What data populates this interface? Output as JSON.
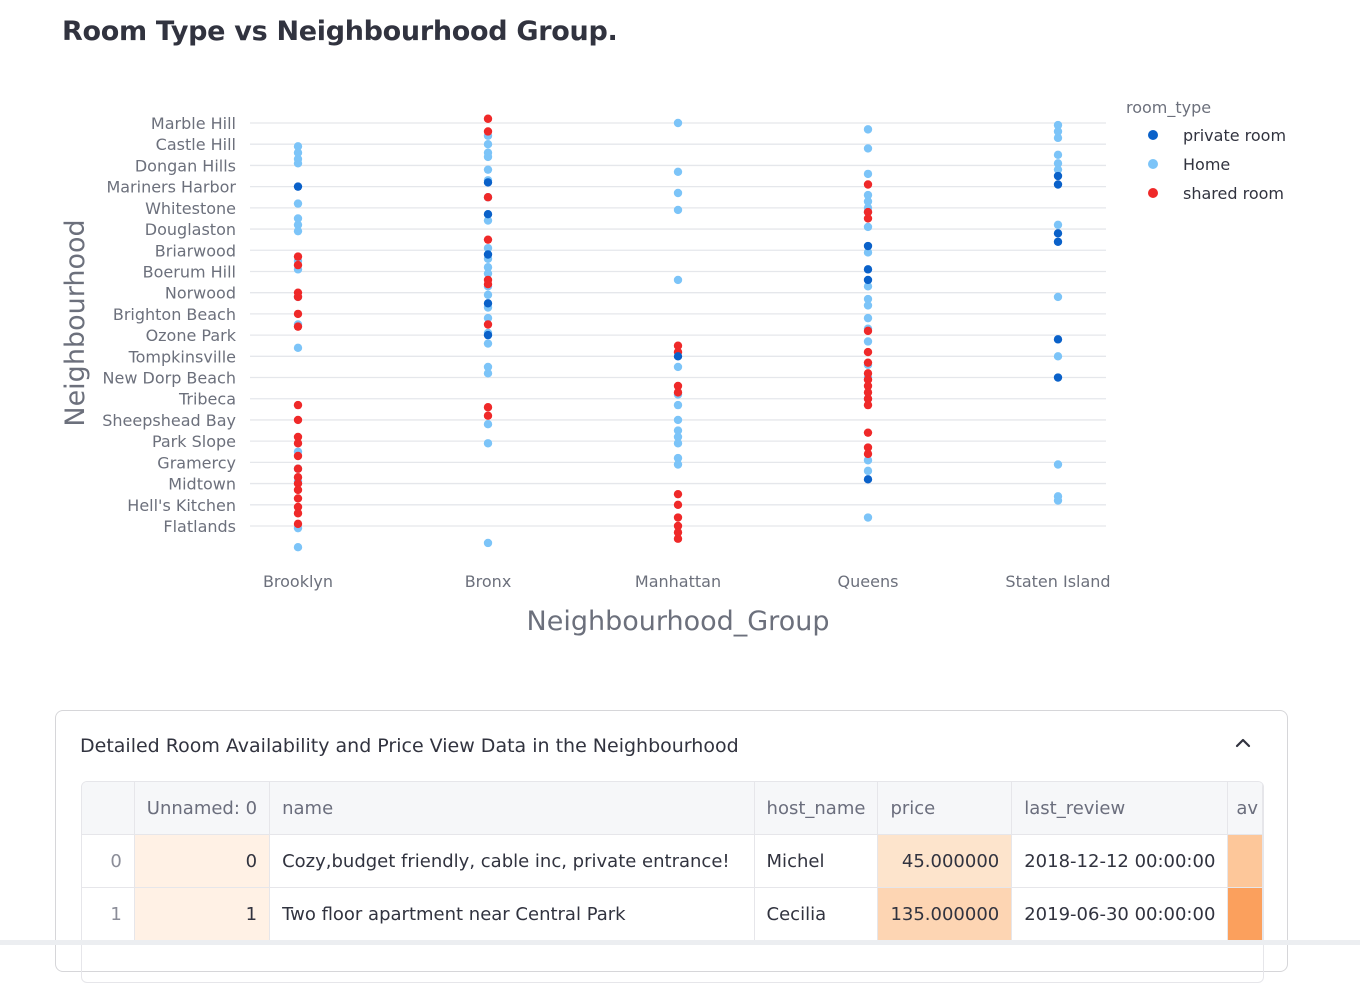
{
  "page": {
    "title": "Room Type vs Neighbourhood Group."
  },
  "chart_data": {
    "type": "scatter",
    "xlabel": "Neighbourhood_Group",
    "ylabel": "Neighbourhood",
    "categories_x": [
      "Brooklyn",
      "Bronx",
      "Manhattan",
      "Queens",
      "Staten Island"
    ],
    "y_tick_labels": [
      "Marble Hill",
      "Castle Hill",
      "Dongan Hills",
      "Mariners Harbor",
      "Whitestone",
      "Douglaston",
      "Briarwood",
      "Boerum Hill",
      "Norwood",
      "Brighton Beach",
      "Ozone Park",
      "Tompkinsville",
      "New Dorp Beach",
      "Tribeca",
      "Sheepshead Bay",
      "Park Slope",
      "Gramercy",
      "Midtown",
      "Hell's Kitchen",
      "Flatlands"
    ],
    "legend": {
      "title": "room_type",
      "position": "top-right"
    },
    "grid": true,
    "series": [
      {
        "name": "private room",
        "color": "#0a61c9",
        "points": [
          [
            "Brooklyn",
            3.0
          ],
          [
            "Bronx",
            2.8
          ],
          [
            "Bronx",
            4.3
          ],
          [
            "Bronx",
            6.2
          ],
          [
            "Bronx",
            8.5
          ],
          [
            "Bronx",
            10.0
          ],
          [
            "Manhattan",
            11.0
          ],
          [
            "Queens",
            5.8
          ],
          [
            "Queens",
            6.9
          ],
          [
            "Queens",
            7.4
          ],
          [
            "Queens",
            16.8
          ],
          [
            "Staten Island",
            2.5
          ],
          [
            "Staten Island",
            2.9
          ],
          [
            "Staten Island",
            5.2
          ],
          [
            "Staten Island",
            5.6
          ],
          [
            "Staten Island",
            10.2
          ],
          [
            "Staten Island",
            12.0
          ]
        ]
      },
      {
        "name": "Home",
        "color": "#7cc4f8",
        "points": [
          [
            "Brooklyn",
            1.1
          ],
          [
            "Brooklyn",
            1.4
          ],
          [
            "Brooklyn",
            1.7
          ],
          [
            "Brooklyn",
            1.9
          ],
          [
            "Brooklyn",
            3.8
          ],
          [
            "Brooklyn",
            4.5
          ],
          [
            "Brooklyn",
            4.8
          ],
          [
            "Brooklyn",
            5.1
          ],
          [
            "Brooklyn",
            6.5
          ],
          [
            "Brooklyn",
            6.9
          ],
          [
            "Brooklyn",
            8.2
          ],
          [
            "Brooklyn",
            9.5
          ],
          [
            "Brooklyn",
            10.6
          ],
          [
            "Brooklyn",
            15.5
          ],
          [
            "Brooklyn",
            16.3
          ],
          [
            "Brooklyn",
            16.9
          ],
          [
            "Brooklyn",
            19.1
          ],
          [
            "Brooklyn",
            20.0
          ],
          [
            "Bronx",
            0.6
          ],
          [
            "Bronx",
            1.0
          ],
          [
            "Bronx",
            1.4
          ],
          [
            "Bronx",
            1.6
          ],
          [
            "Bronx",
            2.2
          ],
          [
            "Bronx",
            2.7
          ],
          [
            "Bronx",
            3.5
          ],
          [
            "Bronx",
            4.6
          ],
          [
            "Bronx",
            5.9
          ],
          [
            "Bronx",
            6.4
          ],
          [
            "Bronx",
            6.8
          ],
          [
            "Bronx",
            7.1
          ],
          [
            "Bronx",
            7.7
          ],
          [
            "Bronx",
            8.1
          ],
          [
            "Bronx",
            8.7
          ],
          [
            "Bronx",
            9.2
          ],
          [
            "Bronx",
            9.9
          ],
          [
            "Bronx",
            10.4
          ],
          [
            "Bronx",
            11.5
          ],
          [
            "Bronx",
            11.8
          ],
          [
            "Bronx",
            14.2
          ],
          [
            "Bronx",
            15.1
          ],
          [
            "Bronx",
            19.8
          ],
          [
            "Manhattan",
            0.0
          ],
          [
            "Manhattan",
            2.3
          ],
          [
            "Manhattan",
            3.3
          ],
          [
            "Manhattan",
            4.1
          ],
          [
            "Manhattan",
            7.4
          ],
          [
            "Manhattan",
            11.5
          ],
          [
            "Manhattan",
            12.8
          ],
          [
            "Manhattan",
            13.3
          ],
          [
            "Manhattan",
            14.0
          ],
          [
            "Manhattan",
            14.5
          ],
          [
            "Manhattan",
            14.8
          ],
          [
            "Manhattan",
            15.1
          ],
          [
            "Manhattan",
            15.8
          ],
          [
            "Manhattan",
            16.1
          ],
          [
            "Queens",
            0.3
          ],
          [
            "Queens",
            1.2
          ],
          [
            "Queens",
            2.4
          ],
          [
            "Queens",
            3.4
          ],
          [
            "Queens",
            3.7
          ],
          [
            "Queens",
            4.0
          ],
          [
            "Queens",
            4.2
          ],
          [
            "Queens",
            4.9
          ],
          [
            "Queens",
            6.1
          ],
          [
            "Queens",
            7.7
          ],
          [
            "Queens",
            8.3
          ],
          [
            "Queens",
            8.6
          ],
          [
            "Queens",
            9.2
          ],
          [
            "Queens",
            9.7
          ],
          [
            "Queens",
            10.3
          ],
          [
            "Queens",
            11.4
          ],
          [
            "Queens",
            12.0
          ],
          [
            "Queens",
            13.0
          ],
          [
            "Queens",
            15.9
          ],
          [
            "Queens",
            16.4
          ],
          [
            "Queens",
            18.6
          ],
          [
            "Staten Island",
            0.1
          ],
          [
            "Staten Island",
            0.4
          ],
          [
            "Staten Island",
            0.7
          ],
          [
            "Staten Island",
            1.5
          ],
          [
            "Staten Island",
            1.9
          ],
          [
            "Staten Island",
            2.2
          ],
          [
            "Staten Island",
            4.8
          ],
          [
            "Staten Island",
            8.2
          ],
          [
            "Staten Island",
            11.0
          ],
          [
            "Staten Island",
            16.1
          ],
          [
            "Staten Island",
            17.6
          ],
          [
            "Staten Island",
            17.8
          ]
        ]
      },
      {
        "name": "shared room",
        "color": "#ef2929",
        "points": [
          [
            "Brooklyn",
            6.3
          ],
          [
            "Brooklyn",
            6.7
          ],
          [
            "Brooklyn",
            8.0
          ],
          [
            "Brooklyn",
            8.2
          ],
          [
            "Brooklyn",
            9.0
          ],
          [
            "Brooklyn",
            9.6
          ],
          [
            "Brooklyn",
            13.3
          ],
          [
            "Brooklyn",
            14.0
          ],
          [
            "Brooklyn",
            14.8
          ],
          [
            "Brooklyn",
            15.1
          ],
          [
            "Brooklyn",
            15.7
          ],
          [
            "Brooklyn",
            16.3
          ],
          [
            "Brooklyn",
            16.7
          ],
          [
            "Brooklyn",
            17.0
          ],
          [
            "Brooklyn",
            17.3
          ],
          [
            "Brooklyn",
            17.7
          ],
          [
            "Brooklyn",
            18.1
          ],
          [
            "Brooklyn",
            18.4
          ],
          [
            "Brooklyn",
            18.9
          ],
          [
            "Bronx",
            -0.2
          ],
          [
            "Bronx",
            0.4
          ],
          [
            "Bronx",
            3.5
          ],
          [
            "Bronx",
            5.5
          ],
          [
            "Bronx",
            7.4
          ],
          [
            "Bronx",
            7.6
          ],
          [
            "Bronx",
            9.5
          ],
          [
            "Bronx",
            13.4
          ],
          [
            "Bronx",
            13.8
          ],
          [
            "Manhattan",
            10.5
          ],
          [
            "Manhattan",
            10.8
          ],
          [
            "Manhattan",
            12.4
          ],
          [
            "Manhattan",
            12.7
          ],
          [
            "Manhattan",
            17.5
          ],
          [
            "Manhattan",
            18.0
          ],
          [
            "Manhattan",
            18.6
          ],
          [
            "Manhattan",
            19.0
          ],
          [
            "Manhattan",
            19.3
          ],
          [
            "Manhattan",
            19.6
          ],
          [
            "Queens",
            2.9
          ],
          [
            "Queens",
            4.2
          ],
          [
            "Queens",
            4.5
          ],
          [
            "Queens",
            9.8
          ],
          [
            "Queens",
            10.8
          ],
          [
            "Queens",
            11.3
          ],
          [
            "Queens",
            11.8
          ],
          [
            "Queens",
            12.1
          ],
          [
            "Queens",
            12.4
          ],
          [
            "Queens",
            12.7
          ],
          [
            "Queens",
            13.0
          ],
          [
            "Queens",
            13.3
          ],
          [
            "Queens",
            14.6
          ],
          [
            "Queens",
            15.3
          ],
          [
            "Queens",
            15.6
          ]
        ]
      }
    ]
  },
  "expander": {
    "title": "Detailed Room Availability and Price View Data in the Neighbourhood"
  },
  "table": {
    "columns": [
      "",
      "Unnamed: 0",
      "name",
      "host_name",
      "price",
      "last_review",
      "av"
    ],
    "rows": [
      {
        "index": "0",
        "unnamed": "0",
        "name": "Cozy,budget friendly, cable inc, private entrance!",
        "host_name": "Michel",
        "price": "45.000000",
        "last_review": "2018-12-12 00:00:00"
      },
      {
        "index": "1",
        "unnamed": "1",
        "name": "Two floor apartment near Central Park",
        "host_name": "Cecilia",
        "price": "135.000000",
        "last_review": "2019-06-30 00:00:00"
      }
    ],
    "colors": {
      "unnamed_bg": "#fff1e5",
      "price_bg": [
        "#fde4cc",
        "#fdd5b3"
      ],
      "avail_bg": [
        "#fdc79a",
        "#fba05d"
      ]
    }
  }
}
